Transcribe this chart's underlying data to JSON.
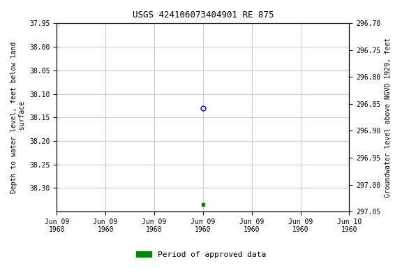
{
  "title": "USGS 424106073404901 RE 875",
  "ylabel_left": "Depth to water level, feet below land\n surface",
  "ylabel_right": "Groundwater level above NGVD 1929, feet",
  "ylim_left": [
    37.95,
    38.35
  ],
  "ylim_right": [
    296.7,
    297.05
  ],
  "yticks_left": [
    37.95,
    38.0,
    38.05,
    38.1,
    38.15,
    38.2,
    38.25,
    38.3
  ],
  "yticks_right": [
    296.7,
    296.75,
    296.8,
    296.85,
    296.9,
    296.95,
    297.0,
    297.05
  ],
  "point_open": {
    "y": 38.13,
    "color": "#0000cc",
    "marker": "o",
    "markersize": 5,
    "fillstyle": "none"
  },
  "point_filled": {
    "y": 38.335,
    "color": "#008800",
    "marker": "s",
    "markersize": 3
  },
  "x_tick_labels": [
    "Jun 09\n1960",
    "Jun 09\n1960",
    "Jun 09\n1960",
    "Jun 09\n1960",
    "Jun 09\n1960",
    "Jun 09\n1960",
    "Jun 10\n1960"
  ],
  "background_color": "#ffffff",
  "grid_color": "#cccccc",
  "legend_label": "Period of approved data",
  "legend_color": "#008800",
  "title_fontsize": 9,
  "axis_fontsize": 7,
  "tick_fontsize": 7
}
